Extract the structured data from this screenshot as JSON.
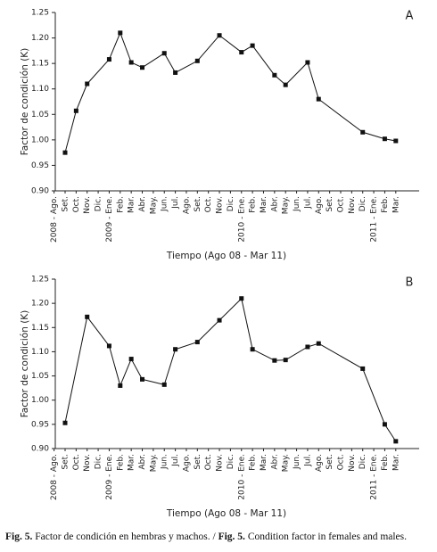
{
  "chart_data": [
    {
      "type": "line",
      "annotation": "A",
      "xlabel": "Tiempo (Ago 08 - Mar 11)",
      "ylabel": "Factor de condición (K)",
      "categories": [
        "2008 - Ago.",
        "Set.",
        "Oct.",
        "Nov.",
        "Dic.",
        "2009 - Ene.",
        "Feb.",
        "Mar.",
        "Abr.",
        "May.",
        "Jun.",
        "Jul.",
        "Ago.",
        "Set.",
        "Oct.",
        "Nov.",
        "Dic.",
        "2010 - Ene.",
        "Feb.",
        "Mar.",
        "Abr.",
        "May.",
        "Jun.",
        "Jul.",
        "Ago.",
        "Set.",
        "Oct.",
        "Nov.",
        "Dic.",
        "2011 - Ene.",
        "Feb.",
        "Mar."
      ],
      "series": [
        {
          "color": "#111111",
          "values": [
            null,
            0.975,
            1.057,
            1.11,
            null,
            1.158,
            1.21,
            1.152,
            1.142,
            null,
            1.17,
            1.132,
            null,
            1.155,
            null,
            1.205,
            null,
            1.172,
            1.185,
            null,
            1.127,
            1.108,
            null,
            1.152,
            1.08,
            null,
            null,
            null,
            1.015,
            null,
            1.002,
            0.998
          ]
        }
      ],
      "ylim": [
        0.9,
        1.25
      ],
      "yticks": [
        {
          "value": 0.9,
          "label": "0.90"
        },
        0.95,
        {
          "value": 1.0,
          "label": "1.00"
        },
        1.05,
        {
          "value": 1.1,
          "label": "1.10"
        },
        1.15,
        {
          "value": 1.2,
          "label": "1.20"
        },
        1.25
      ]
    },
    {
      "type": "line",
      "annotation": "B",
      "xlabel": "Tiempo (Ago 08 - Mar 11)",
      "ylabel": "Factor de condición (K)",
      "categories": [
        "2008 - Ago.",
        "Set.",
        "Oct.",
        "Nov.",
        "Dic.",
        "2009 - Ene.",
        "Feb.",
        "Mar.",
        "Abr.",
        "May.",
        "Jun.",
        "Jul.",
        "Ago.",
        "Set.",
        "Oct.",
        "Nov.",
        "Dic.",
        "2010 - Ene.",
        "Feb.",
        "Mar.",
        "Abr.",
        "May.",
        "Jun.",
        "Jul.",
        "Ago.",
        "Set.",
        "Oct.",
        "Nov.",
        "Dic.",
        "2011 - Ene.",
        "Feb.",
        "Mar."
      ],
      "series": [
        {
          "color": "#111111",
          "values": [
            null,
            0.953,
            null,
            1.172,
            null,
            1.112,
            1.03,
            1.085,
            1.043,
            null,
            1.032,
            1.105,
            null,
            1.12,
            null,
            1.165,
            null,
            1.21,
            1.105,
            null,
            1.082,
            1.083,
            null,
            1.11,
            1.117,
            null,
            null,
            null,
            1.065,
            null,
            0.95,
            0.915
          ]
        }
      ],
      "ylim": [
        0.9,
        1.25
      ],
      "yticks": [
        {
          "value": 0.9,
          "label": "0.90"
        },
        0.95,
        {
          "value": 1.0,
          "label": "1.00"
        },
        1.05,
        {
          "value": 1.1,
          "label": "1.10"
        },
        1.15,
        {
          "value": 1.2,
          "label": "1.20"
        },
        1.25
      ]
    }
  ],
  "caption": {
    "parts": [
      "Fig. 5.",
      " Factor de condición en hembras y machos. / ",
      "Fig. 5.",
      " Condition factor in females and males."
    ]
  }
}
